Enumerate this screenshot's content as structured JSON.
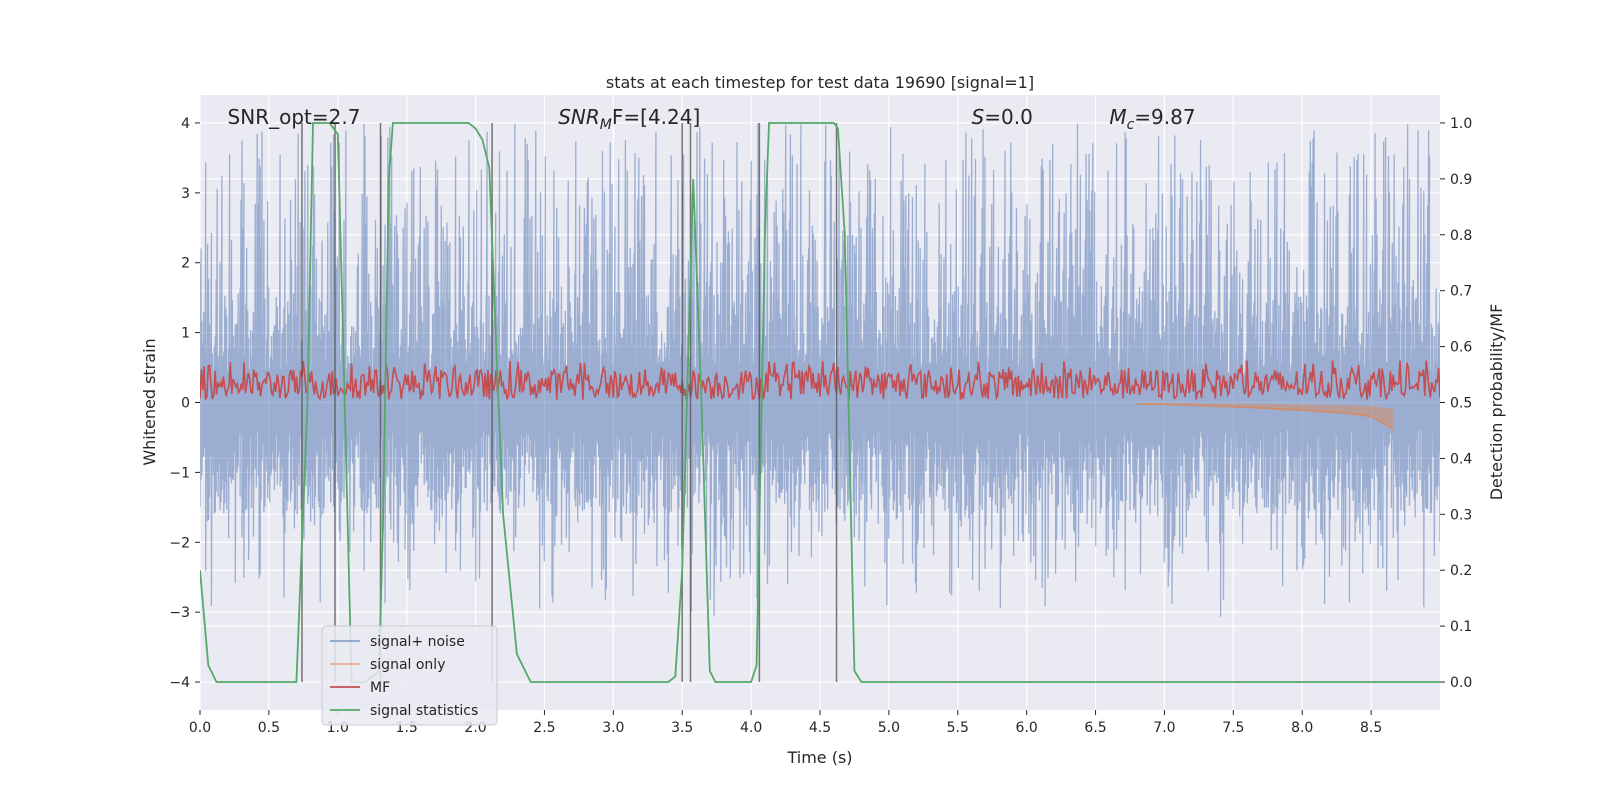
{
  "chart_data": {
    "type": "line",
    "title": "stats at each timestep for test data 19690 [signal=1]",
    "xlabel": "Time (s)",
    "ylabel": "Whitened strain",
    "ylabel_right": "Detection probability/MF",
    "xlim": [
      0.0,
      9.0
    ],
    "ylim": [
      -4.4,
      4.4
    ],
    "ylim_right": [
      -0.05,
      1.05
    ],
    "xticks": [
      "0.0",
      "0.5",
      "1.0",
      "1.5",
      "2.0",
      "2.5",
      "3.0",
      "3.5",
      "4.0",
      "4.5",
      "5.0",
      "5.5",
      "6.0",
      "6.5",
      "7.0",
      "7.5",
      "8.0",
      "8.5"
    ],
    "yticks": [
      "−4",
      "−3",
      "−2",
      "−1",
      "0",
      "1",
      "2",
      "3",
      "4"
    ],
    "yticks_right": [
      "0.0",
      "0.1",
      "0.2",
      "0.3",
      "0.4",
      "0.5",
      "0.6",
      "0.7",
      "0.8",
      "0.9",
      "1.0"
    ],
    "grid": true,
    "legend_position": "bottom-left",
    "annotations": [
      {
        "text": "SNR_opt=2.7",
        "x": 0.2
      },
      {
        "main": "SNR",
        "sub": "M",
        "rest": "F=[4.24]",
        "x": 2.6
      },
      {
        "main": "S",
        "sub": "",
        "rest": "=0.0",
        "x": 5.6
      },
      {
        "main": "M",
        "sub": "c",
        "rest": "=9.87",
        "x": 6.6
      }
    ],
    "vertical_lines": [
      0.74,
      0.98,
      1.31,
      2.12,
      3.5,
      3.56,
      4.06,
      4.62
    ],
    "series": [
      {
        "name": "signal+ noise",
        "color": "#4c72b0",
        "axis": "left",
        "envelope_abs": 1.6,
        "peak_abs": 4.0
      },
      {
        "name": "signal only",
        "color": "#dd8452",
        "axis": "left",
        "x": [
          6.8,
          7.2,
          7.6,
          8.0,
          8.3,
          8.5,
          8.66
        ],
        "y": [
          -0.02,
          -0.04,
          -0.07,
          -0.11,
          -0.15,
          -0.2,
          -0.38
        ]
      },
      {
        "name": "MF",
        "color": "#c44e52",
        "axis": "right",
        "band": [
          0.505,
          0.56
        ]
      },
      {
        "name": "signal statistics",
        "color": "#55a868",
        "axis": "right",
        "x": [
          0.0,
          0.06,
          0.12,
          0.2,
          0.4,
          0.7,
          0.78,
          0.82,
          0.9,
          0.94,
          1.0,
          1.03,
          1.1,
          1.2,
          1.3,
          1.33,
          1.37,
          1.4,
          1.5,
          1.8,
          1.95,
          2.0,
          2.05,
          2.1,
          2.15,
          2.2,
          2.3,
          2.4,
          2.5,
          2.8,
          3.2,
          3.4,
          3.45,
          3.5,
          3.58,
          3.64,
          3.7,
          3.74,
          3.8,
          4.0,
          4.04,
          4.1,
          4.13,
          4.4,
          4.6,
          4.63,
          4.68,
          4.75,
          4.8,
          5.5,
          9.0
        ],
        "y": [
          0.2,
          0.03,
          0.0,
          0.0,
          0.0,
          0.0,
          0.5,
          1.0,
          1.0,
          1.0,
          0.98,
          0.7,
          0.0,
          0.0,
          0.02,
          0.3,
          0.9,
          1.0,
          1.0,
          1.0,
          1.0,
          0.99,
          0.97,
          0.92,
          0.6,
          0.3,
          0.05,
          0.0,
          0.0,
          0.0,
          0.0,
          0.0,
          0.01,
          0.2,
          0.9,
          0.5,
          0.02,
          0.0,
          0.0,
          0.0,
          0.03,
          0.8,
          1.0,
          1.0,
          1.0,
          0.99,
          0.8,
          0.02,
          0.0,
          0.0,
          0.0
        ]
      }
    ]
  }
}
